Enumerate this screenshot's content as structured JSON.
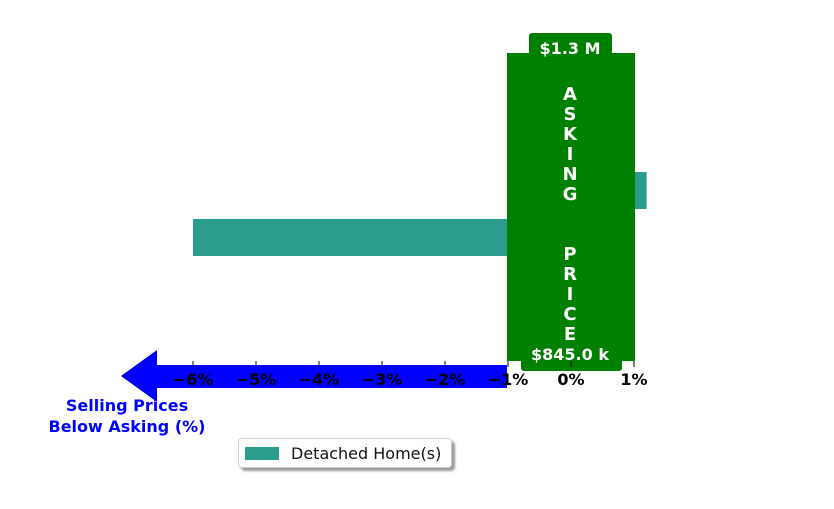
{
  "chart_data": {
    "type": "bar",
    "orientation": "horizontal",
    "series": [
      {
        "name": "Detached Home(s)",
        "color": "#2a9d8f",
        "values": [
          1.2,
          -6.0
        ]
      }
    ],
    "xlim": [
      -6.6,
      1.25
    ],
    "x_ticks": [
      "−6%",
      "−5%",
      "−4%",
      "−3%",
      "−2%",
      "−1%",
      "0%",
      "1%"
    ],
    "x_tick_values": [
      -6,
      -5,
      -4,
      -3,
      -2,
      -1,
      0,
      1
    ],
    "xlabel": "Selling Prices\nBelow Asking (%)",
    "xlabel_color": "#0000ff",
    "arrow_color": "#0000ff",
    "asking_price_band": {
      "color": "#008000",
      "text": "ASKING  PRICE",
      "top_label": "$1.3 M",
      "bottom_label": "$845.0 k"
    },
    "legend_position": "lower-center",
    "grid": false
  }
}
